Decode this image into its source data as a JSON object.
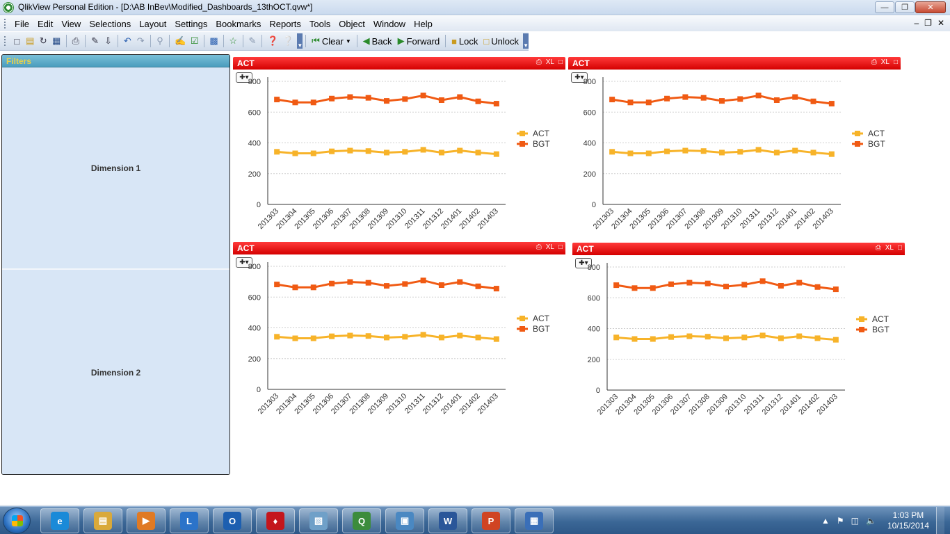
{
  "window": {
    "title": "QlikView Personal Edition - [D:\\AB InBev\\Modified_Dashboards_13thOCT.qvw*]",
    "minimize": "—",
    "maximize": "❐",
    "close": "✕"
  },
  "menu": {
    "items": [
      "File",
      "Edit",
      "View",
      "Selections",
      "Layout",
      "Settings",
      "Bookmarks",
      "Reports",
      "Tools",
      "Object",
      "Window",
      "Help"
    ],
    "mdi_min": "–",
    "mdi_restore": "❐",
    "mdi_close": "✕"
  },
  "toolbar": {
    "clear_label": "Clear",
    "back_label": "Back",
    "forward_label": "Forward",
    "lock_label": "Lock",
    "unlock_label": "Unlock"
  },
  "filters": {
    "header": "Filters",
    "dimension1": "Dimension 1",
    "dimension2": "Dimension 2"
  },
  "chart_common": {
    "caption": "ACT",
    "xl_label": "XL"
  },
  "chart_data": [
    {
      "type": "line",
      "title": "ACT",
      "x": [
        "201303",
        "201304",
        "201305",
        "201306",
        "201307",
        "201308",
        "201309",
        "201310",
        "201311",
        "201312",
        "201401",
        "201402",
        "201403"
      ],
      "ylim": [
        0,
        800
      ],
      "yticks": [
        "0",
        "200",
        "400",
        "600",
        "800"
      ],
      "grid": true,
      "legend": "right",
      "series": [
        {
          "name": "ACT",
          "color": "#f7b329",
          "values": [
            342,
            332,
            332,
            345,
            350,
            347,
            337,
            342,
            355,
            337,
            350,
            337,
            327
          ]
        },
        {
          "name": "BGT",
          "color": "#f05a13",
          "values": [
            682,
            663,
            663,
            688,
            698,
            693,
            673,
            685,
            708,
            678,
            698,
            670,
            655
          ]
        }
      ]
    },
    {
      "type": "line",
      "title": "ACT",
      "x": [
        "201303",
        "201304",
        "201305",
        "201306",
        "201307",
        "201308",
        "201309",
        "201310",
        "201311",
        "201312",
        "201401",
        "201402",
        "201403"
      ],
      "ylim": [
        0,
        800
      ],
      "yticks": [
        "0",
        "200",
        "400",
        "600",
        "800"
      ],
      "grid": true,
      "legend": "right",
      "series": [
        {
          "name": "ACT",
          "color": "#f7b329",
          "values": [
            342,
            332,
            332,
            345,
            350,
            347,
            337,
            342,
            355,
            337,
            350,
            337,
            327
          ]
        },
        {
          "name": "BGT",
          "color": "#f05a13",
          "values": [
            682,
            663,
            663,
            688,
            698,
            693,
            673,
            685,
            708,
            678,
            698,
            670,
            655
          ]
        }
      ]
    },
    {
      "type": "line",
      "title": "ACT",
      "x": [
        "201303",
        "201304",
        "201305",
        "201306",
        "201307",
        "201308",
        "201309",
        "201310",
        "201311",
        "201312",
        "201401",
        "201402",
        "201403"
      ],
      "ylim": [
        0,
        800
      ],
      "yticks": [
        "0",
        "200",
        "400",
        "600",
        "800"
      ],
      "grid": true,
      "legend": "right",
      "series": [
        {
          "name": "ACT",
          "color": "#f7b329",
          "values": [
            342,
            332,
            332,
            345,
            350,
            347,
            337,
            342,
            355,
            337,
            350,
            337,
            327
          ]
        },
        {
          "name": "BGT",
          "color": "#f05a13",
          "values": [
            682,
            663,
            663,
            688,
            698,
            693,
            673,
            685,
            708,
            678,
            698,
            670,
            655
          ]
        }
      ]
    },
    {
      "type": "line",
      "title": "ACT",
      "x": [
        "201303",
        "201304",
        "201305",
        "201306",
        "201307",
        "201308",
        "201309",
        "201310",
        "201311",
        "201312",
        "201401",
        "201402",
        "201403"
      ],
      "ylim": [
        0,
        800
      ],
      "yticks": [
        "0",
        "200",
        "400",
        "600",
        "800"
      ],
      "grid": true,
      "legend": "right",
      "series": [
        {
          "name": "ACT",
          "color": "#f7b329",
          "values": [
            342,
            332,
            332,
            345,
            350,
            347,
            337,
            342,
            355,
            337,
            350,
            337,
            327
          ]
        },
        {
          "name": "BGT",
          "color": "#f05a13",
          "values": [
            682,
            663,
            663,
            688,
            698,
            693,
            673,
            685,
            708,
            678,
            698,
            670,
            655
          ]
        }
      ]
    }
  ],
  "taskbar": {
    "apps": [
      {
        "name": "internet-explorer",
        "glyph": "e",
        "color": "#1a8ad8"
      },
      {
        "name": "file-explorer",
        "glyph": "▤",
        "color": "#d9a93a"
      },
      {
        "name": "media-player",
        "glyph": "▶",
        "color": "#e07a24"
      },
      {
        "name": "lync",
        "glyph": "L",
        "color": "#2b73c9"
      },
      {
        "name": "outlook",
        "glyph": "O",
        "color": "#1d5fb0"
      },
      {
        "name": "acrobat",
        "glyph": "♦",
        "color": "#c4161c"
      },
      {
        "name": "notepad",
        "glyph": "▧",
        "color": "#6fa0c8"
      },
      {
        "name": "qlikview",
        "glyph": "Q",
        "color": "#3c8c3c"
      },
      {
        "name": "photo-viewer",
        "glyph": "▣",
        "color": "#4a88c2"
      },
      {
        "name": "word",
        "glyph": "W",
        "color": "#2a5699"
      },
      {
        "name": "powerpoint",
        "glyph": "P",
        "color": "#d04423"
      },
      {
        "name": "remote-desktop",
        "glyph": "▦",
        "color": "#3a6fb8"
      }
    ],
    "time": "1:03 PM",
    "date": "10/15/2014"
  }
}
